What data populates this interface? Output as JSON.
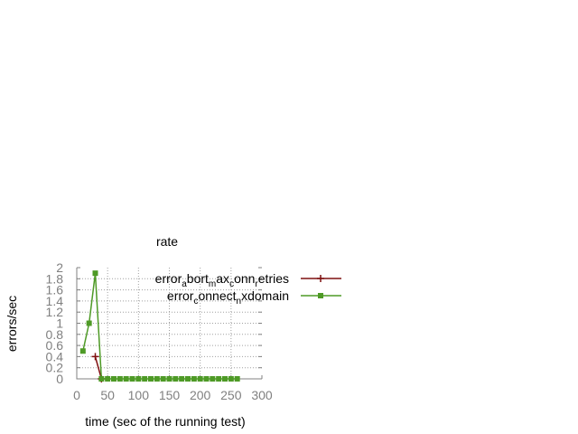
{
  "chart_data": {
    "type": "line",
    "title": "rate",
    "xlabel": "time (sec of the running test)",
    "ylabel": "errors/sec",
    "xlim": [
      0,
      300
    ],
    "ylim": [
      0,
      2
    ],
    "xticks": [
      "0",
      "50",
      "100",
      "150",
      "200",
      "250",
      "300"
    ],
    "yticks": [
      "0",
      "0.2",
      "0.4",
      "0.6",
      "0.8",
      "1",
      "1.2",
      "1.4",
      "1.6",
      "1.8",
      "2"
    ],
    "grid": true,
    "legend_position": "top-right",
    "series": [
      {
        "name": "error_abort_max_conn_retries",
        "color": "#7f1010",
        "marker": "plus",
        "x": [
          30,
          40
        ],
        "y": [
          0.4,
          0
        ]
      },
      {
        "name": "error_connect_nxdomain",
        "color": "#4e9a26",
        "marker": "filled-square",
        "x": [
          10,
          20,
          30,
          40,
          50,
          60,
          70,
          80,
          90,
          100,
          110,
          120,
          130,
          140,
          150,
          160,
          170,
          180,
          190,
          200,
          210,
          220,
          230,
          240,
          250,
          260
        ],
        "y": [
          0.5,
          1,
          1.9,
          0,
          0,
          0,
          0,
          0,
          0,
          0,
          0,
          0,
          0,
          0,
          0,
          0,
          0,
          0,
          0,
          0,
          0,
          0,
          0,
          0,
          0,
          0
        ]
      }
    ],
    "legend": [
      {
        "parts": [
          {
            "text": "error",
            "sub": false
          },
          {
            "text": "a",
            "sub": true
          },
          {
            "text": "bort",
            "sub": false
          },
          {
            "text": "m",
            "sub": true
          },
          {
            "text": "ax",
            "sub": false
          },
          {
            "text": "c",
            "sub": true
          },
          {
            "text": "onn",
            "sub": false
          },
          {
            "text": "r",
            "sub": true
          },
          {
            "text": "etries",
            "sub": false
          }
        ]
      },
      {
        "parts": [
          {
            "text": "error",
            "sub": false
          },
          {
            "text": "c",
            "sub": true
          },
          {
            "text": "onnect",
            "sub": false
          },
          {
            "text": "n",
            "sub": true
          },
          {
            "text": "xdomain",
            "sub": false
          }
        ]
      }
    ]
  }
}
